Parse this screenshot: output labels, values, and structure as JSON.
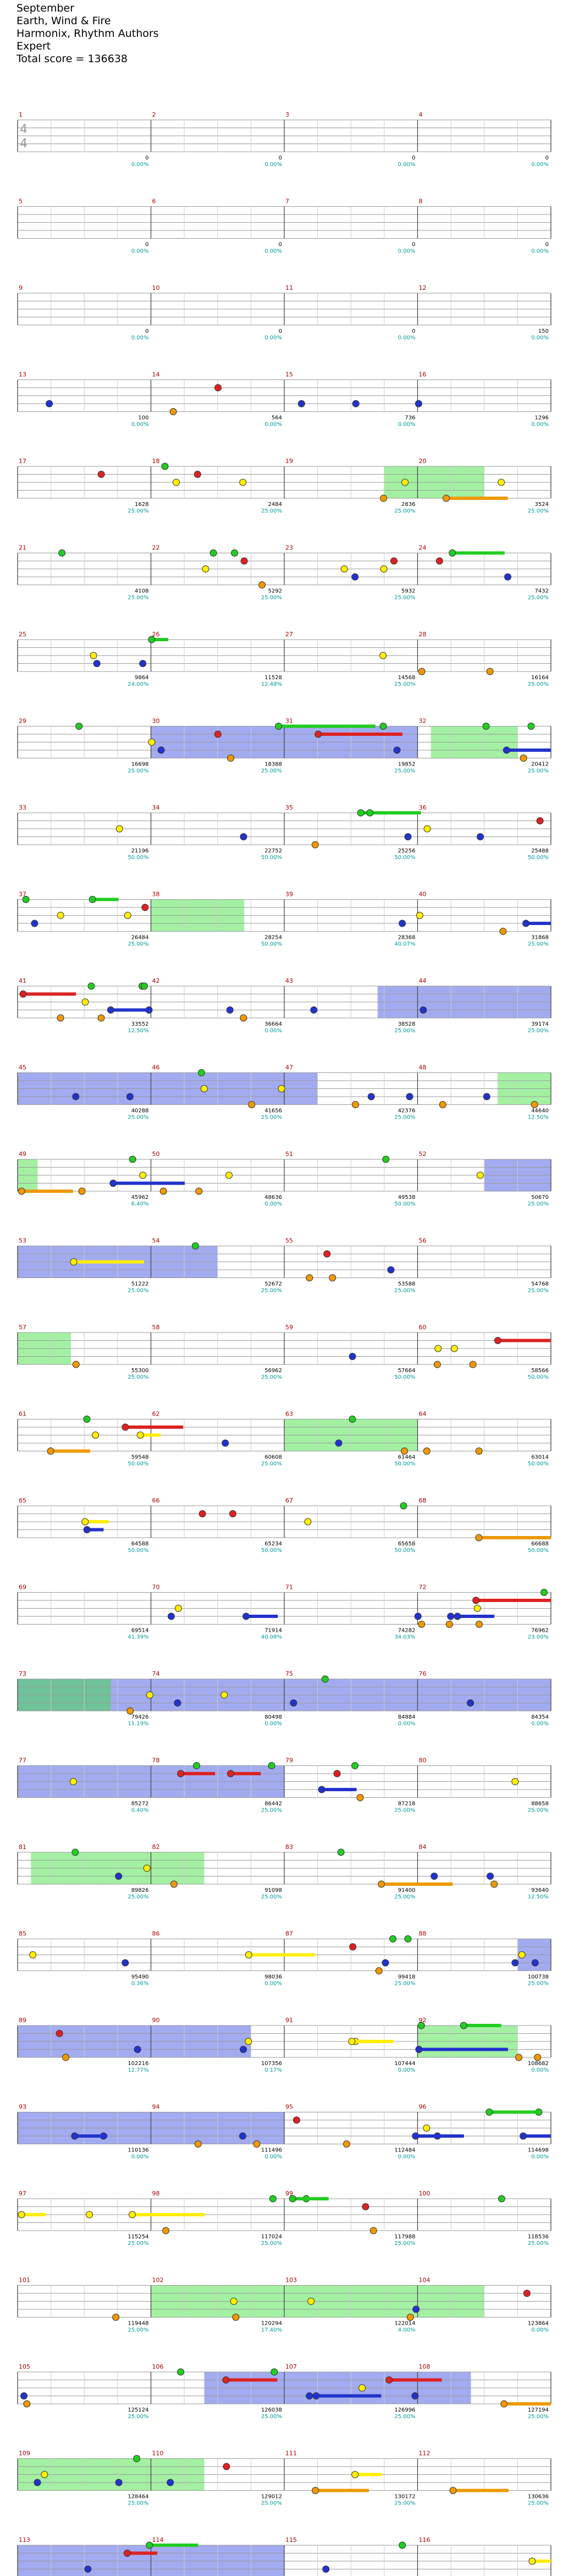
{
  "song": {
    "title": "September",
    "artist": "Earth, Wind & Fire",
    "authors": "Harmonix, Rhythm Authors",
    "difficulty": "Expert",
    "total_score_label": "Total score = 136638"
  },
  "time_signature": "4/4",
  "colors": {
    "green": "#22cc22",
    "red": "#dd2222",
    "yellow": "#ffee00",
    "blue": "#2233cc",
    "orange": "#ee9900",
    "star_power_overlay": "#3344dd",
    "solo_overlay": "#33dd33",
    "multiplier_text": "#009999",
    "score_text": "#000000"
  },
  "chart_data": {
    "type": "table",
    "rows_shown": 29,
    "measures_per_row": 4,
    "measures": [
      {
        "n": 1,
        "score": 0,
        "percent": "0.00%"
      },
      {
        "n": 2,
        "score": 0,
        "percent": "0.00%"
      },
      {
        "n": 3,
        "score": 0,
        "percent": "0.00%"
      },
      {
        "n": 4,
        "score": 0,
        "percent": "0.00%"
      },
      {
        "n": 5,
        "score": 0,
        "percent": "0.00%"
      },
      {
        "n": 6,
        "score": 0,
        "percent": "0.00%"
      },
      {
        "n": 7,
        "score": 0,
        "percent": "0.00%"
      },
      {
        "n": 8,
        "score": 0,
        "percent": "0.00%"
      },
      {
        "n": 9,
        "score": 0,
        "percent": "0.00%"
      },
      {
        "n": 10,
        "score": 0,
        "percent": "0.00%"
      },
      {
        "n": 11,
        "score": 0,
        "percent": "0.00%"
      },
      {
        "n": 12,
        "score": 150,
        "percent": "0.00%"
      },
      {
        "n": 13,
        "score": 100,
        "percent": "0.00%"
      },
      {
        "n": 14,
        "score": 564,
        "percent": "0.00%"
      },
      {
        "n": 15,
        "score": 736,
        "percent": "0.00%"
      },
      {
        "n": 16,
        "score": 1296,
        "percent": "0.00%"
      },
      {
        "n": 17,
        "score": 1628,
        "percent": "25.00%"
      },
      {
        "n": 18,
        "score": 2484,
        "percent": "25.00%"
      },
      {
        "n": 19,
        "score": 2836,
        "percent": "25.00%"
      },
      {
        "n": 20,
        "score": 3524,
        "percent": "25.00%"
      },
      {
        "n": 21,
        "score": 4108,
        "percent": "25.00%"
      },
      {
        "n": 22,
        "score": 5292,
        "percent": "25.00%"
      },
      {
        "n": 23,
        "score": 5932,
        "percent": "25.00%"
      },
      {
        "n": 24,
        "score": 7432,
        "percent": "25.00%"
      },
      {
        "n": 25,
        "score": 9864,
        "percent": "24.00%"
      },
      {
        "n": 26,
        "score": 11528,
        "percent": "12.48%"
      },
      {
        "n": 27,
        "score": 14568,
        "percent": "25.00%"
      },
      {
        "n": 28,
        "score": 16164,
        "percent": "25.00%"
      },
      {
        "n": 29,
        "score": 16698,
        "percent": "25.00%"
      },
      {
        "n": 30,
        "score": 18388,
        "percent": "25.00%"
      },
      {
        "n": 31,
        "score": 19852,
        "percent": "25.00%"
      },
      {
        "n": 32,
        "score": 20412,
        "percent": "25.00%"
      },
      {
        "n": 33,
        "score": 21196,
        "percent": "50.00%"
      },
      {
        "n": 34,
        "score": 22752,
        "percent": "50.00%"
      },
      {
        "n": 35,
        "score": 25256,
        "percent": "50.00%"
      },
      {
        "n": 36,
        "score": 25488,
        "percent": "50.00%"
      },
      {
        "n": 37,
        "score": 26484,
        "percent": "25.00%"
      },
      {
        "n": 38,
        "score": 28254,
        "percent": "50.00%"
      },
      {
        "n": 39,
        "score": 28368,
        "percent": "40.07%"
      },
      {
        "n": 40,
        "score": 31868,
        "percent": "25.00%"
      },
      {
        "n": 41,
        "score": 33552,
        "percent": "12.50%"
      },
      {
        "n": 42,
        "score": 36664,
        "percent": "0.00%"
      },
      {
        "n": 43,
        "score": 38528,
        "percent": "25.00%"
      },
      {
        "n": 44,
        "score": 39174,
        "percent": "25.00%"
      },
      {
        "n": 45,
        "score": 40288,
        "percent": "25.00%"
      },
      {
        "n": 46,
        "score": 41656,
        "percent": "25.00%"
      },
      {
        "n": 47,
        "score": 42376,
        "percent": "25.00%"
      },
      {
        "n": 48,
        "score": 44640,
        "percent": "12.50%"
      },
      {
        "n": 49,
        "score": 45962,
        "percent": "6.40%"
      },
      {
        "n": 50,
        "score": 48636,
        "percent": "0.00%"
      },
      {
        "n": 51,
        "score": 49538,
        "percent": "50.00%"
      },
      {
        "n": 52,
        "score": 50670,
        "percent": "25.00%"
      },
      {
        "n": 53,
        "score": 51222,
        "percent": "25.00%"
      },
      {
        "n": 54,
        "score": 52672,
        "percent": "25.00%"
      },
      {
        "n": 55,
        "score": 53588,
        "percent": "25.00%"
      },
      {
        "n": 56,
        "score": 54768,
        "percent": "25.00%"
      },
      {
        "n": 57,
        "score": 55300,
        "percent": "25.00%"
      },
      {
        "n": 58,
        "score": 56962,
        "percent": "25.00%"
      },
      {
        "n": 59,
        "score": 57664,
        "percent": "50.00%"
      },
      {
        "n": 60,
        "score": 58566,
        "percent": "50.00%"
      },
      {
        "n": 61,
        "score": 59548,
        "percent": "50.00%"
      },
      {
        "n": 62,
        "score": 60608,
        "percent": "25.00%"
      },
      {
        "n": 63,
        "score": 61464,
        "percent": "50.00%"
      },
      {
        "n": 64,
        "score": 63014,
        "percent": "50.00%"
      },
      {
        "n": 65,
        "score": 64588,
        "percent": "50.00%"
      },
      {
        "n": 66,
        "score": 65234,
        "percent": "50.00%"
      },
      {
        "n": 67,
        "score": 65658,
        "percent": "50.00%"
      },
      {
        "n": 68,
        "score": 66688,
        "percent": "50.00%"
      },
      {
        "n": 69,
        "score": 69514,
        "percent": "41.39%"
      },
      {
        "n": 70,
        "score": 71914,
        "percent": "40.08%"
      },
      {
        "n": 71,
        "score": 74282,
        "percent": "34.03%"
      },
      {
        "n": 72,
        "score": 76962,
        "percent": "23.00%"
      },
      {
        "n": 73,
        "score": 79426,
        "percent": "11.19%"
      },
      {
        "n": 74,
        "score": 80498,
        "percent": "0.00%"
      },
      {
        "n": 75,
        "score": 84884,
        "percent": "0.00%"
      },
      {
        "n": 76,
        "score": 84354,
        "percent": "0.00%"
      },
      {
        "n": 77,
        "score": 85272,
        "percent": "0.40%"
      },
      {
        "n": 78,
        "score": 86442,
        "percent": "25.00%"
      },
      {
        "n": 79,
        "score": 87218,
        "percent": "25.00%"
      },
      {
        "n": 80,
        "score": 88658,
        "percent": "25.00%"
      },
      {
        "n": 81,
        "score": 89826,
        "percent": "25.00%"
      },
      {
        "n": 82,
        "score": 91098,
        "percent": "25.00%"
      },
      {
        "n": 83,
        "score": 91400,
        "percent": "25.00%"
      },
      {
        "n": 84,
        "score": 93640,
        "percent": "12.50%"
      },
      {
        "n": 85,
        "score": 95490,
        "percent": "0.36%"
      },
      {
        "n": 86,
        "score": 98036,
        "percent": "0.00%"
      },
      {
        "n": 87,
        "score": 99418,
        "percent": "25.00%"
      },
      {
        "n": 88,
        "score": 100738,
        "percent": "25.00%"
      },
      {
        "n": 89,
        "score": 102216,
        "percent": "12.77%"
      },
      {
        "n": 90,
        "score": 107356,
        "percent": "0.17%"
      },
      {
        "n": 91,
        "score": 107444,
        "percent": "0.00%"
      },
      {
        "n": 92,
        "score": 108682,
        "percent": "0.00%"
      },
      {
        "n": 93,
        "score": 110136,
        "percent": "0.00%"
      },
      {
        "n": 94,
        "score": 111496,
        "percent": "0.00%"
      },
      {
        "n": 95,
        "score": 112484,
        "percent": "0.00%"
      },
      {
        "n": 96,
        "score": 114698,
        "percent": "0.00%"
      },
      {
        "n": 97,
        "score": 115254,
        "percent": "25.00%"
      },
      {
        "n": 98,
        "score": 117024,
        "percent": "25.00%"
      },
      {
        "n": 99,
        "score": 117988,
        "percent": "25.00%"
      },
      {
        "n": 100,
        "score": 118536,
        "percent": "25.00%"
      },
      {
        "n": 101,
        "score": 119448,
        "percent": "25.00%"
      },
      {
        "n": 102,
        "score": 120294,
        "percent": "17.40%"
      },
      {
        "n": 103,
        "score": 122014,
        "percent": "4.00%"
      },
      {
        "n": 104,
        "score": 123864,
        "percent": "0.00%"
      },
      {
        "n": 105,
        "score": 125124,
        "percent": "25.00%"
      },
      {
        "n": 106,
        "score": 126038,
        "percent": "25.00%"
      },
      {
        "n": 107,
        "score": 126996,
        "percent": "25.00%"
      },
      {
        "n": 108,
        "score": 127194,
        "percent": "25.00%"
      },
      {
        "n": 109,
        "score": 128464,
        "percent": "25.00%"
      },
      {
        "n": 110,
        "score": 129012,
        "percent": "25.00%"
      },
      {
        "n": 111,
        "score": 130172,
        "percent": "25.00%"
      },
      {
        "n": 112,
        "score": 130636,
        "percent": "25.00%"
      },
      {
        "n": 113,
        "score": 131588,
        "percent": "12.74%"
      },
      {
        "n": 114,
        "score": 133762,
        "percent": "0.24%"
      },
      {
        "n": 115,
        "score": 136288,
        "percent": "0.00%"
      },
      {
        "n": 116,
        "score": 136638,
        "percent": "0.00%"
      }
    ],
    "star_power_spans": [
      {
        "row": 7,
        "from": 1.0,
        "to": 3.0
      },
      {
        "row": 10,
        "from": 2.7,
        "to": 4.0
      },
      {
        "row": 11,
        "from": 0,
        "to": 2.25
      },
      {
        "row": 12,
        "from": 3.5,
        "to": 4.0
      },
      {
        "row": 13,
        "from": 0,
        "to": 1.5
      },
      {
        "row": 18,
        "from": 0,
        "to": 4.0
      },
      {
        "row": 19,
        "from": 0,
        "to": 2.0
      },
      {
        "row": 21,
        "from": 3.75,
        "to": 4.0
      },
      {
        "row": 22,
        "from": 0,
        "to": 1.75
      },
      {
        "row": 23,
        "from": 0,
        "to": 2.0
      },
      {
        "row": 26,
        "from": 1.4,
        "to": 3.4
      },
      {
        "row": 28,
        "from": 0,
        "to": 2.0
      }
    ],
    "solo_spans": [
      {
        "row": 4,
        "from": 2.75,
        "to": 3.5
      },
      {
        "row": 7,
        "from": 3.1,
        "to": 3.75
      },
      {
        "row": 9,
        "from": 1.0,
        "to": 1.7
      },
      {
        "row": 11,
        "from": 3.6,
        "to": 4.0
      },
      {
        "row": 12,
        "from": 0,
        "to": 0.15
      },
      {
        "row": 14,
        "from": 0,
        "to": 0.4
      },
      {
        "row": 15,
        "from": 2.0,
        "to": 3.0
      },
      {
        "row": 18,
        "from": 0,
        "to": 0.7
      },
      {
        "row": 20,
        "from": 0.1,
        "to": 1.4
      },
      {
        "row": 22,
        "from": 3.0,
        "to": 3.75
      },
      {
        "row": 25,
        "from": 1.0,
        "to": 3.5
      },
      {
        "row": 27,
        "from": 0,
        "to": 1.4
      }
    ]
  }
}
